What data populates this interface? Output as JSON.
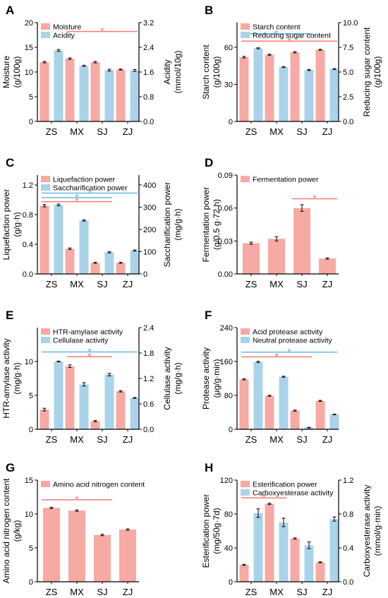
{
  "style": {
    "pink": "#f7aaa3",
    "blue": "#a9d3ea",
    "sig_pink": "#f47c74",
    "sig_blue": "#66b8e3",
    "axis": "#000000"
  },
  "chart_data": [
    {
      "panel": "A",
      "type": "bar",
      "categories": [
        "ZS",
        "MX",
        "SJ",
        "ZJ"
      ],
      "ylabel": "Moisture\n(g/100g)",
      "ylim": [
        0,
        20
      ],
      "yticks": [
        0,
        5,
        10,
        15,
        20
      ],
      "y2label": "Acidity\n(mmol/10g)",
      "y2lim": [
        0,
        3.2
      ],
      "y2ticks": [
        "0.0",
        "0.8",
        "1.6",
        "2.4",
        "3.2"
      ],
      "legend_position": "top-left",
      "series": [
        {
          "name": "Moisture",
          "color": "pink",
          "axis": "left",
          "values": [
            12.0,
            12.7,
            12.0,
            10.5
          ],
          "errors": [
            0.15,
            0.15,
            0.15,
            0.1
          ]
        },
        {
          "name": "Acidity",
          "color": "blue",
          "axis": "right",
          "values": [
            2.3,
            1.8,
            1.66,
            1.65
          ],
          "errors": [
            0.03,
            0.02,
            0.03,
            0.03
          ]
        }
      ],
      "significance": [
        {
          "color": "pink",
          "from": 1,
          "to": 3,
          "y": 18.2,
          "label": "*"
        }
      ]
    },
    {
      "panel": "B",
      "type": "bar",
      "categories": [
        "ZS",
        "MX",
        "SJ",
        "ZJ"
      ],
      "ylabel": "Starch content\n(g/100g)",
      "ylim": [
        0,
        80
      ],
      "yticks": [
        0,
        30,
        60
      ],
      "y2label": "Reducing sugar content\n(g/100g)",
      "y2lim": [
        0,
        10
      ],
      "y2ticks": [
        "0.0",
        "2.5",
        "5.0",
        "7.5",
        "10.0"
      ],
      "legend_position": "top-left",
      "series": [
        {
          "name": "Starch content",
          "color": "pink",
          "axis": "left",
          "values": [
            52,
            54,
            56,
            58
          ],
          "errors": [
            0.6,
            0.4,
            0.5,
            0.4
          ]
        },
        {
          "name": "Reducing sugar content",
          "color": "blue",
          "axis": "right",
          "values": [
            7.4,
            5.5,
            5.2,
            5.3
          ],
          "errors": [
            0.05,
            0.05,
            0.05,
            0.05
          ]
        }
      ],
      "significance": [
        {
          "color": "blue",
          "from": 0,
          "to": 2,
          "y": 71,
          "label": "*"
        },
        {
          "color": "pink",
          "from": 0,
          "to": 3,
          "y": 65,
          "label": "*"
        }
      ]
    },
    {
      "panel": "C",
      "type": "bar",
      "categories": [
        "ZS",
        "MX",
        "SJ",
        "ZJ"
      ],
      "ylabel": "Liquefaction power\n(g/g·h)",
      "ylim": [
        0,
        1.333
      ],
      "yticks": [
        "0.0",
        "0.4",
        "0.8",
        "1.2"
      ],
      "y2label": "Saccharification power\n(mg/g·h)",
      "y2lim": [
        0,
        444
      ],
      "y2ticks": [
        "0",
        "100",
        "200",
        "300",
        "400"
      ],
      "legend_position": "top-left",
      "series": [
        {
          "name": "Liquefaction power",
          "color": "pink",
          "axis": "left",
          "values": [
            0.92,
            0.34,
            0.15,
            0.15
          ],
          "errors": [
            0.015,
            0.01,
            0.008,
            0.008
          ]
        },
        {
          "name": "Saccharification power",
          "color": "blue",
          "axis": "right",
          "values": [
            310,
            240,
            97,
            105
          ],
          "errors": [
            4,
            3,
            2.5,
            2.5
          ]
        }
      ],
      "significance": [
        {
          "color": "blue",
          "from": 0,
          "to": 3,
          "y": 1.09,
          "label": "*"
        },
        {
          "color": "blue",
          "from": 0,
          "to": 2,
          "y": 1.03,
          "label": "*"
        },
        {
          "color": "pink",
          "from": 0,
          "to": 2,
          "y": 0.975,
          "label": "*"
        }
      ]
    },
    {
      "panel": "D",
      "type": "bar",
      "categories": [
        "ZS",
        "MX",
        "SJ",
        "ZJ"
      ],
      "ylabel": "Fermentation power\n(g/0.5 g·72 h)",
      "ylim": [
        0,
        0.09
      ],
      "yticks": [
        "0.00",
        "0.03",
        "0.06",
        "0.09"
      ],
      "legend_position": "top-left",
      "series": [
        {
          "name": "Fermentation power",
          "color": "pink",
          "axis": "left",
          "values": [
            0.028,
            0.032,
            0.06,
            0.014
          ],
          "errors": [
            0.001,
            0.002,
            0.003,
            0.0005
          ]
        }
      ],
      "significance": [
        {
          "color": "pink",
          "from": 2,
          "to": 3,
          "y": 0.0685,
          "label": "*"
        }
      ]
    },
    {
      "panel": "E",
      "type": "bar",
      "categories": [
        "ZS",
        "MX",
        "SJ",
        "ZJ"
      ],
      "ylabel": "HTR-amylase activity\n(mg/g·h)",
      "ylim": [
        0,
        15
      ],
      "yticks": [
        0,
        5,
        10
      ],
      "y2label": "Cellulase activity\n(mg/g·h)",
      "y2lim": [
        0,
        2.4
      ],
      "y2ticks": [
        "0.0",
        "0.6",
        "1.2",
        "1.8",
        "2.4"
      ],
      "legend_position": "top-left",
      "series": [
        {
          "name": "HTR-amylase activity",
          "color": "pink",
          "axis": "left",
          "values": [
            2.9,
            9.3,
            1.2,
            5.6
          ],
          "errors": [
            0.2,
            0.2,
            0.1,
            0.1
          ]
        },
        {
          "name": "Cellulase activity",
          "color": "blue",
          "axis": "right",
          "values": [
            1.6,
            1.06,
            1.29,
            0.74
          ],
          "errors": [
            0.01,
            0.04,
            0.03,
            0.01
          ]
        }
      ],
      "significance": [
        {
          "color": "blue",
          "from": 0,
          "to": 3,
          "y": 11.4,
          "label": "*"
        },
        {
          "color": "pink",
          "from": 1,
          "to": 2,
          "y": 10.7,
          "label": "*"
        }
      ]
    },
    {
      "panel": "F",
      "type": "bar",
      "categories": [
        "ZS",
        "MX",
        "SJ",
        "ZJ"
      ],
      "ylabel": "Protease activity\n(μg/g·min)",
      "ylim": [
        0,
        240
      ],
      "yticks": [
        0,
        80,
        160,
        240
      ],
      "legend_position": "top-left",
      "series": [
        {
          "name": "Acid protease activity",
          "color": "pink",
          "axis": "left",
          "values": [
            118,
            79,
            44,
            67
          ],
          "errors": [
            1.5,
            1.2,
            1.2,
            1.2
          ]
        },
        {
          "name": "Neutral protease activity",
          "color": "blue",
          "axis": "left",
          "values": [
            159,
            124,
            4,
            35
          ],
          "errors": [
            1.5,
            1.2,
            0.6,
            0.8
          ]
        }
      ],
      "significance": [
        {
          "color": "blue",
          "from": 0,
          "to": 3,
          "y": 182,
          "label": "*"
        },
        {
          "color": "pink",
          "from": 0,
          "to": 2,
          "y": 171,
          "label": "*"
        }
      ]
    },
    {
      "panel": "G",
      "type": "bar",
      "categories": [
        "ZS",
        "MX",
        "SJ",
        "ZJ"
      ],
      "ylabel": "Amino acid nitrogen content\n(g/kg)",
      "ylim": [
        0,
        15
      ],
      "yticks": [
        0,
        5,
        10,
        15
      ],
      "legend_position": "top-left",
      "series": [
        {
          "name": "Amino acid nitrogen content",
          "color": "pink",
          "axis": "left",
          "values": [
            10.9,
            10.5,
            6.9,
            7.7
          ],
          "errors": [
            0.1,
            0.1,
            0.1,
            0.1
          ]
        }
      ],
      "significance": [
        {
          "color": "pink",
          "from": 0,
          "to": 2,
          "y": 12.1,
          "label": "*"
        }
      ]
    },
    {
      "panel": "H",
      "type": "bar",
      "categories": [
        "ZS",
        "MX",
        "SJ",
        "ZJ"
      ],
      "ylabel": "Esterification power\n(mg/50g·7d)",
      "ylim": [
        0,
        120
      ],
      "yticks": [
        0,
        40,
        80,
        120
      ],
      "y2label": "Carboxyesterase activity\n(mmol/g·min)",
      "y2lim": [
        0,
        1.2
      ],
      "y2ticks": [
        "0.0",
        "0.4",
        "0.8",
        "1.2"
      ],
      "legend_position": "top-left",
      "series": [
        {
          "name": "Esterification power",
          "color": "pink",
          "axis": "left",
          "values": [
            20,
            92,
            51,
            23
          ],
          "errors": [
            0.6,
            0.8,
            0.8,
            0.5
          ]
        },
        {
          "name": "Carboxyesterase activity",
          "color": "blue",
          "axis": "right",
          "values": [
            0.81,
            0.7,
            0.43,
            0.74
          ],
          "errors": [
            0.05,
            0.05,
            0.04,
            0.025
          ]
        }
      ],
      "significance": [
        {
          "color": "pink",
          "from": 0,
          "to": 1,
          "y": 99,
          "label": "*"
        }
      ]
    }
  ]
}
